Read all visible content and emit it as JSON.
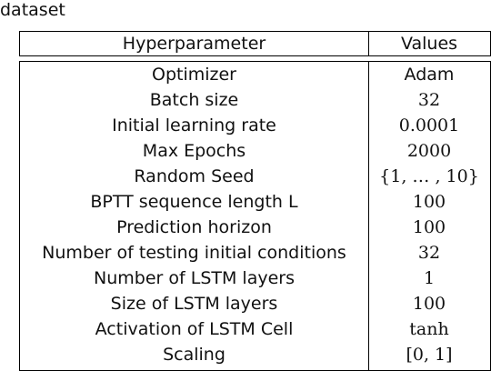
{
  "caption": "dataset",
  "table": {
    "headers": {
      "param": "Hyperparameter",
      "value": "Values"
    },
    "rows": [
      {
        "param": "Optimizer",
        "value": "Adam",
        "math": false
      },
      {
        "param": "Batch size",
        "value": "32",
        "math": true
      },
      {
        "param": "Initial learning rate",
        "value": "0.0001",
        "math": true
      },
      {
        "param": "Max Epochs",
        "value": "2000",
        "math": true
      },
      {
        "param": "Random Seed",
        "value": "{1, … , 10}",
        "math": true
      },
      {
        "param": "BPTT sequence length L",
        "value": "100",
        "math": true
      },
      {
        "param": "Prediction horizon",
        "value": "100",
        "math": true
      },
      {
        "param": "Number of testing initial conditions",
        "value": "32",
        "math": true
      },
      {
        "param": "Number of LSTM layers",
        "value": "1",
        "math": true
      },
      {
        "param": "Size of LSTM layers",
        "value": "100",
        "math": true
      },
      {
        "param": "Activation of LSTM Cell",
        "value": "tanh",
        "math": true
      },
      {
        "param": "Scaling",
        "value": "[0, 1]",
        "math": true
      }
    ]
  }
}
